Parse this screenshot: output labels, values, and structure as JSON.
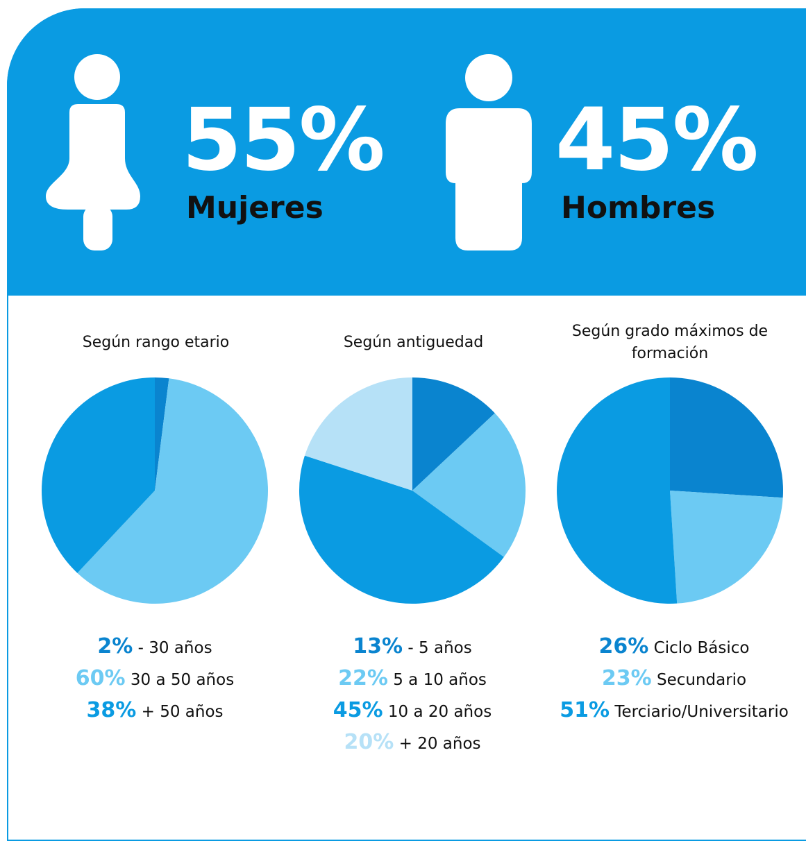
{
  "summary": {
    "women": {
      "percent": "55%",
      "label": "Mujeres"
    },
    "men": {
      "percent": "45%",
      "label": "Hombres"
    }
  },
  "colors": {
    "band": "#0a9be2",
    "slice_dark": "#0a84cf",
    "slice_medium": "#0a9be2",
    "slice_light": "#6ccaf3",
    "slice_lightest": "#b6e1f7"
  },
  "chart_data": [
    {
      "type": "pie",
      "title": "Según rango etario",
      "slices": [
        {
          "value": 2,
          "color": "#0a84cf",
          "pct_label": "2%",
          "text": " - 30 años"
        },
        {
          "value": 60,
          "color": "#6ccaf3",
          "pct_label": "60%",
          "text": " 30 a 50 años"
        },
        {
          "value": 38,
          "color": "#0a9be2",
          "pct_label": "38%",
          "text": " + 50 años"
        }
      ]
    },
    {
      "type": "pie",
      "title": "Según antiguedad",
      "slices": [
        {
          "value": 13,
          "color": "#0a84cf",
          "pct_label": "13%",
          "text": " - 5 años"
        },
        {
          "value": 22,
          "color": "#6ccaf3",
          "pct_label": "22%",
          "text": " 5 a 10 años"
        },
        {
          "value": 45,
          "color": "#0a9be2",
          "pct_label": "45%",
          "text": " 10 a 20 años"
        },
        {
          "value": 20,
          "color": "#b6e1f7",
          "pct_label": "20%",
          "text": " + 20 años"
        }
      ]
    },
    {
      "type": "pie",
      "title": "Según grado máximos de formación",
      "slices": [
        {
          "value": 26,
          "color": "#0a84cf",
          "pct_label": "26%",
          "text": " Ciclo Básico"
        },
        {
          "value": 23,
          "color": "#6ccaf3",
          "pct_label": "23%",
          "text": " Secundario"
        },
        {
          "value": 51,
          "color": "#0a9be2",
          "pct_label": "51%",
          "text": " Terciario/Universitario"
        }
      ]
    }
  ]
}
